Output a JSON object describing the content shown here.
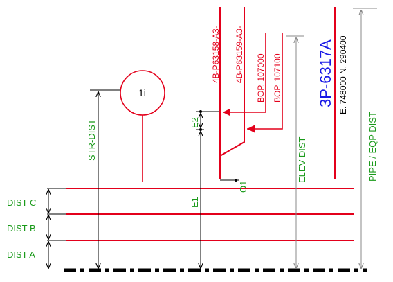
{
  "colors": {
    "red": "#e3001b",
    "green": "#1a9a1a",
    "blue": "#1a1ae6",
    "black": "#000000",
    "grey": "#8a8a8a"
  },
  "labels": {
    "dist_a": "DIST A",
    "dist_b": "DIST B",
    "dist_c": "DIST C",
    "str_dist": "STR-DIST",
    "e1": "E1",
    "e2": "E2",
    "o1": "O1",
    "elev_dist": "ELEV DIST",
    "pipe_eqp_dist": "PIPE / EQP DIST"
  },
  "bubble": {
    "text": "1i"
  },
  "pipes": {
    "pipe1": "4B-P63158-A3-",
    "pipe2": "4B-P63159-A3-"
  },
  "bop": {
    "bop1": "BOP. 107000",
    "bop2": "BOP. 107100"
  },
  "equipment": {
    "tag": "3P-6317A",
    "coords": "E. 748000 N. 290400"
  }
}
